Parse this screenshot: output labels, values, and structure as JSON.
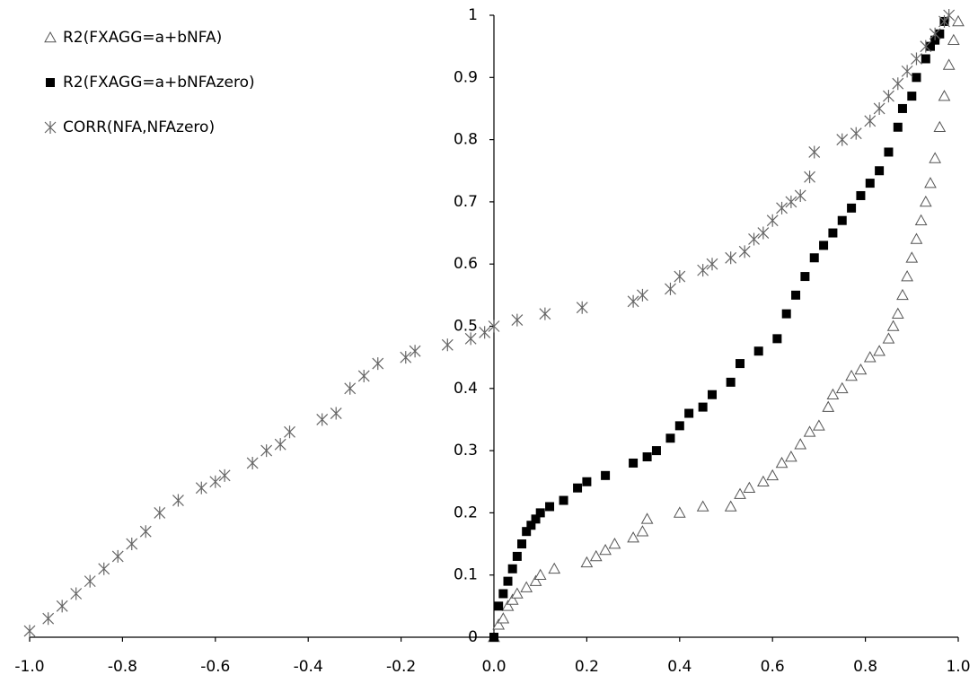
{
  "chart_data": {
    "type": "scatter",
    "xlim": [
      -1.0,
      1.0
    ],
    "ylim": [
      0,
      1
    ],
    "xticks": [
      {
        "value": -1.0,
        "label": "-1.0"
      },
      {
        "value": -0.8,
        "label": "-0.8"
      },
      {
        "value": -0.6,
        "label": "-0.6"
      },
      {
        "value": -0.4,
        "label": "-0.4"
      },
      {
        "value": -0.2,
        "label": "-0.2"
      },
      {
        "value": 0.0,
        "label": "0.0"
      },
      {
        "value": 0.2,
        "label": "0.2"
      },
      {
        "value": 0.4,
        "label": "0.4"
      },
      {
        "value": 0.6,
        "label": "0.6"
      },
      {
        "value": 0.8,
        "label": "0.8"
      },
      {
        "value": 1.0,
        "label": "1.0"
      }
    ],
    "yticks": [
      0,
      0.1,
      0.2,
      0.3,
      0.4,
      0.5,
      0.6,
      0.7,
      0.8,
      0.9,
      1
    ],
    "grid": false,
    "legend": "upper left",
    "series": [
      {
        "name": "R2(FXAGG=a+bNFA)",
        "marker": "triangle",
        "color": "#555555",
        "x": [
          0.0,
          0.01,
          0.02,
          0.03,
          0.04,
          0.05,
          0.07,
          0.09,
          0.1,
          0.13,
          0.2,
          0.22,
          0.24,
          0.26,
          0.3,
          0.32,
          0.33,
          0.4,
          0.45,
          0.51,
          0.53,
          0.55,
          0.58,
          0.6,
          0.62,
          0.64,
          0.66,
          0.68,
          0.7,
          0.72,
          0.73,
          0.75,
          0.77,
          0.79,
          0.81,
          0.83,
          0.85,
          0.86,
          0.87,
          0.88,
          0.89,
          0.9,
          0.91,
          0.92,
          0.93,
          0.94,
          0.95,
          0.96,
          0.97,
          0.98,
          0.99,
          1.0
        ],
        "values": [
          0.0,
          0.02,
          0.03,
          0.05,
          0.06,
          0.07,
          0.08,
          0.09,
          0.1,
          0.11,
          0.12,
          0.13,
          0.14,
          0.15,
          0.16,
          0.17,
          0.19,
          0.2,
          0.21,
          0.21,
          0.23,
          0.24,
          0.25,
          0.26,
          0.28,
          0.29,
          0.31,
          0.33,
          0.34,
          0.37,
          0.39,
          0.4,
          0.42,
          0.43,
          0.45,
          0.46,
          0.48,
          0.5,
          0.52,
          0.55,
          0.58,
          0.61,
          0.64,
          0.67,
          0.7,
          0.73,
          0.77,
          0.82,
          0.87,
          0.92,
          0.96,
          0.99
        ]
      },
      {
        "name": "R2(FXAGG=a+bNFAzero)",
        "marker": "square",
        "color": "#000000",
        "x": [
          0.0,
          0.01,
          0.02,
          0.03,
          0.04,
          0.05,
          0.06,
          0.07,
          0.08,
          0.09,
          0.1,
          0.12,
          0.15,
          0.18,
          0.2,
          0.24,
          0.3,
          0.33,
          0.35,
          0.38,
          0.4,
          0.42,
          0.45,
          0.47,
          0.51,
          0.53,
          0.57,
          0.61,
          0.63,
          0.65,
          0.67,
          0.69,
          0.71,
          0.73,
          0.75,
          0.77,
          0.79,
          0.81,
          0.83,
          0.85,
          0.87,
          0.88,
          0.9,
          0.91,
          0.93,
          0.94,
          0.95,
          0.96,
          0.97
        ],
        "values": [
          0.0,
          0.05,
          0.07,
          0.09,
          0.11,
          0.13,
          0.15,
          0.17,
          0.18,
          0.19,
          0.2,
          0.21,
          0.22,
          0.24,
          0.25,
          0.26,
          0.28,
          0.29,
          0.3,
          0.32,
          0.34,
          0.36,
          0.37,
          0.39,
          0.41,
          0.44,
          0.46,
          0.48,
          0.52,
          0.55,
          0.58,
          0.61,
          0.63,
          0.65,
          0.67,
          0.69,
          0.71,
          0.73,
          0.75,
          0.78,
          0.82,
          0.85,
          0.87,
          0.9,
          0.93,
          0.95,
          0.96,
          0.97,
          0.99
        ]
      },
      {
        "name": "CORR(NFA,NFAzero)",
        "marker": "star",
        "color": "#666666",
        "x": [
          -1.0,
          -0.96,
          -0.93,
          -0.9,
          -0.87,
          -0.84,
          -0.81,
          -0.78,
          -0.75,
          -0.72,
          -0.68,
          -0.63,
          -0.6,
          -0.58,
          -0.52,
          -0.49,
          -0.46,
          -0.44,
          -0.37,
          -0.34,
          -0.31,
          -0.28,
          -0.25,
          -0.19,
          -0.17,
          -0.1,
          -0.05,
          -0.02,
          0.0,
          0.05,
          0.11,
          0.19,
          0.3,
          0.32,
          0.38,
          0.4,
          0.45,
          0.47,
          0.51,
          0.54,
          0.56,
          0.58,
          0.6,
          0.62,
          0.64,
          0.66,
          0.68,
          0.69,
          0.75,
          0.78,
          0.81,
          0.83,
          0.85,
          0.87,
          0.89,
          0.91,
          0.93,
          0.95,
          0.97,
          0.98
        ],
        "values": [
          0.01,
          0.03,
          0.05,
          0.07,
          0.09,
          0.11,
          0.13,
          0.15,
          0.17,
          0.2,
          0.22,
          0.24,
          0.25,
          0.26,
          0.28,
          0.3,
          0.31,
          0.33,
          0.35,
          0.36,
          0.4,
          0.42,
          0.44,
          0.45,
          0.46,
          0.47,
          0.48,
          0.49,
          0.5,
          0.51,
          0.52,
          0.53,
          0.54,
          0.55,
          0.56,
          0.58,
          0.59,
          0.6,
          0.61,
          0.62,
          0.64,
          0.65,
          0.67,
          0.69,
          0.7,
          0.71,
          0.74,
          0.78,
          0.8,
          0.81,
          0.83,
          0.85,
          0.87,
          0.89,
          0.91,
          0.93,
          0.95,
          0.97,
          0.99,
          1.0
        ]
      }
    ]
  }
}
